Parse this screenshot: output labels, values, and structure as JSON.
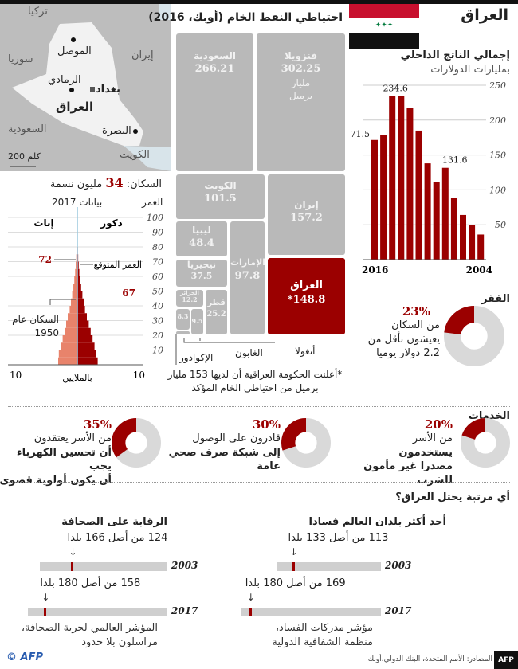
{
  "title": "العراق",
  "colors": {
    "accent": "#9b0000",
    "grey": "#b9b9b9",
    "female": "#e8836b"
  },
  "map": {
    "labels": {
      "turkey": "تركيا",
      "syria": "سوريا",
      "iran": "إيران",
      "saudi": "السعودية",
      "kuwait": "الكويت",
      "iraq": "العراق",
      "mosul": "الموصل",
      "ramadi": "الرمادي",
      "baghdad": "بغداد",
      "basra": "البصرة"
    },
    "scale": "200 كلم"
  },
  "oil": {
    "title": "احتياطي النفط الخام (أوبك، 2016)",
    "unit_line1": "مليار",
    "unit_line2": "برميل",
    "items": [
      {
        "name": "فنزويلا",
        "value": "302.25"
      },
      {
        "name": "السعودية",
        "value": "266.21"
      },
      {
        "name": "إيران",
        "value": "157.2"
      },
      {
        "name": "العراق",
        "value": "*148.8"
      },
      {
        "name": "الكويت",
        "value": "101.5"
      },
      {
        "name": "الإمارات",
        "value": "97.8"
      },
      {
        "name": "ليبيا",
        "value": "48.4"
      },
      {
        "name": "نيجيريا",
        "value": "37.5"
      },
      {
        "name": "قطر",
        "value": "25.2"
      },
      {
        "name": "الجزائر",
        "value": "12.2"
      },
      {
        "name": "أنغولا",
        "value": "9.5"
      },
      {
        "name": "الإكوادور",
        "value": "8.3"
      },
      {
        "name": "الغابون",
        "value": ""
      }
    ],
    "footnote": "*أعلنت الحكومة العراقية أن لديها 153 مليار برميل من احتياطي الخام المؤكد"
  },
  "chart_data": [
    {
      "type": "bar",
      "title": "إجمالي الناتج الداخلي",
      "subtitle": "بمليارات الدولارات",
      "categories": [
        "2016",
        "2015",
        "2014",
        "2013",
        "2012",
        "2011",
        "2010",
        "2009",
        "2008",
        "2007",
        "2006",
        "2005",
        "2004"
      ],
      "values": [
        171.5,
        179,
        234.6,
        234.6,
        217,
        185,
        138,
        111,
        131.6,
        88,
        64,
        50,
        36
      ],
      "data_labels": {
        "2016": "171.5",
        "2014": "234.6",
        "2008": "131.6"
      },
      "xtick_labels": [
        "2016",
        "2004"
      ],
      "yticks": [
        "50",
        "100",
        "150",
        "200",
        "250"
      ],
      "ylim": [
        0,
        250
      ]
    },
    {
      "type": "bar",
      "title": "بيانات 2017",
      "ylabel": "العمر",
      "xlabel": "بالملايين",
      "age_ticks": [
        "10",
        "20",
        "30",
        "40",
        "50",
        "60",
        "70",
        "80",
        "90",
        "100"
      ],
      "x_ticks": [
        "10",
        "10"
      ],
      "male_label": "ذكور",
      "female_label": "إناث",
      "male_millions": [
        3.2,
        3.0,
        2.7,
        2.4,
        2.1,
        1.8,
        1.5,
        1.2,
        1.0,
        0.8,
        0.6,
        0.45,
        0.32,
        0.22,
        0.14,
        0.08,
        0.05
      ],
      "female_millions": [
        3.0,
        2.9,
        2.6,
        2.3,
        2.0,
        1.75,
        1.5,
        1.2,
        1.0,
        0.8,
        0.62,
        0.47,
        0.34,
        0.24,
        0.16,
        0.1,
        0.06
      ],
      "life_expectancy": {
        "label": "العمر المتوقع",
        "female": "72",
        "male": "67"
      },
      "annotation_1950": "السكان عام 1950"
    }
  ],
  "population": {
    "label": "السكان:",
    "value": "34",
    "unit": "مليون نسمة"
  },
  "poverty": {
    "title": "الفقر",
    "percent": 23,
    "percent_label": "23%",
    "text": "من السكان يعيشون بأقل من 2.2 دولار يوميا"
  },
  "services": {
    "title": "الخدمات",
    "items": [
      {
        "percent": 20,
        "percent_label": "20%",
        "line1": "من الأسر",
        "bold1": "يستخدمون",
        "bold2": "مصدرا غير مأمون للشرب"
      },
      {
        "percent": 30,
        "percent_label": "30%",
        "line1": "قادرون على الوصول",
        "bold1": "إلى شبكة صرف صحي",
        "bold2": "عامة"
      },
      {
        "percent": 35,
        "percent_label": "35%",
        "line1": "من الأسر يعتقدون",
        "bold1": "أن تحسين الكهرباء يجب",
        "bold2": "أن يكون أولوية قصوى"
      }
    ]
  },
  "rankings": {
    "title": "أي مرتبة يحتل العراق؟",
    "corruption": {
      "title": "أحد أكثر بلدان العالم فسادا",
      "rows": [
        {
          "year": "2003",
          "rank": 113,
          "total": 133,
          "label": "113 من أصل 133 بلدا"
        },
        {
          "year": "2017",
          "rank": 169,
          "total": 180,
          "label": "169 من أصل 180 بلدا"
        }
      ],
      "source1": "مؤشر مدركات الفساد،",
      "source2": "منظمة الشفافية الدولية"
    },
    "press": {
      "title": "الرقابة على الصحافة",
      "rows": [
        {
          "year": "2003",
          "rank": 124,
          "total": 166,
          "label": "124 من أصل 166 بلدا"
        },
        {
          "year": "2017",
          "rank": 158,
          "total": 180,
          "label": "158 من أصل 180 بلدا"
        }
      ],
      "source1": "المؤشر العالمي لحرية الصحافة،",
      "source2": "مراسلون بلا حدود"
    }
  },
  "footer": {
    "sources": "المصادر: الأمم المتحدة، البنك الدولي،أوبك",
    "logo": "© AFP",
    "badge": "AFP"
  }
}
